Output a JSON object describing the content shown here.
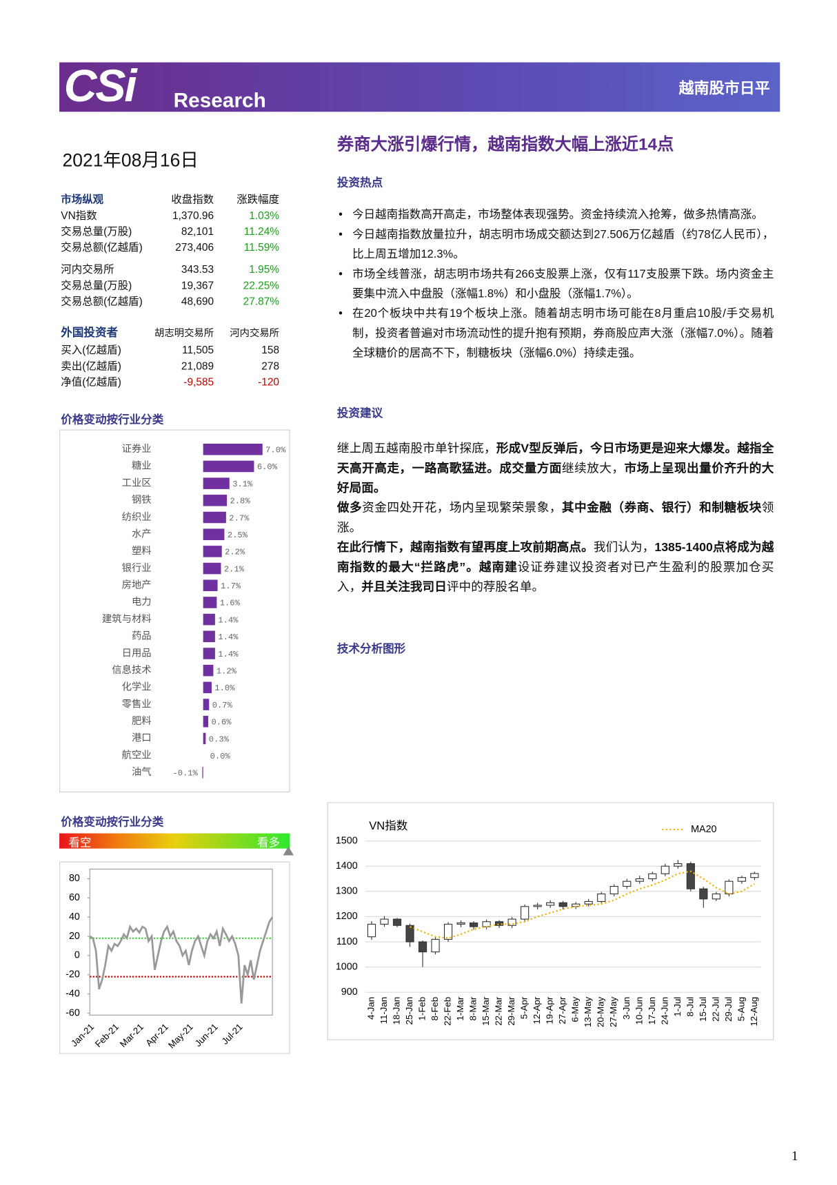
{
  "header": {
    "logo": "CSi",
    "brand": "Research",
    "report_name": "越南股市日平"
  },
  "date": "2021年08月16日",
  "headline": "券商大涨引爆行情，越南指数大幅上涨近14点",
  "market_table": {
    "header": [
      "市场纵观",
      "收盘指数",
      "涨跌幅度"
    ],
    "groups": [
      [
        [
          "VN指数",
          "1,370.96",
          "1.03%"
        ],
        [
          "交易总量(万股)",
          "82,101",
          "11.24%"
        ],
        [
          "交易总额(亿越盾)",
          "273,406",
          "11.59%"
        ]
      ],
      [
        [
          "河内交易所",
          "343.53",
          "1.95%"
        ],
        [
          "交易总量(万股)",
          "19,367",
          "22.25%"
        ],
        [
          "交易总额(亿越盾)",
          "48,690",
          "27.87%"
        ]
      ]
    ]
  },
  "foreign_table": {
    "header": [
      "外国投资者",
      "胡志明交易所",
      "河内交易所"
    ],
    "rows": [
      [
        "买入(亿越盾)",
        "11,505",
        "158"
      ],
      [
        "卖出(亿越盾)",
        "21,089",
        "278"
      ],
      [
        "净值(亿越盾)",
        "-9,585",
        "-120"
      ]
    ]
  },
  "hotspots": {
    "title": "投资热点",
    "items": [
      "今日越南指数高开高走，市场整体表现强势。资金持续流入抢筹，做多热情高涨。",
      "今日越南指数放量拉升，胡志明市场成交额达到27.506万亿越盾（约78亿人民币），比上周五增加12.3%。",
      "市场全线普涨，胡志明市场共有266支股票上涨，仅有117支股票下跌。场内资金主要集中流入中盘股（涨幅1.8%）和小盘股（涨幅1.7%）。",
      "在20个板块中共有19个板块上涨。随着胡志明市场可能在8月重启10股/手交易机制，投资者普遍对市场流动性的提升抱有预期，券商股应声大涨（涨幅7.0%）。随着全球糖价的居高不下，制糖板块（涨幅6.0%）持续走强。"
    ]
  },
  "advice": {
    "title": "投资建议",
    "paragraphs": [
      [
        {
          "text": "继上周五越南股市单针探底，",
          "bold": false
        },
        {
          "text": "形成V型反弹后，",
          "bold": true
        },
        {
          "text": "今日市场更是迎来大爆发。越指全天高开高走，一路高歌猛进。成交量方面",
          "bold": true
        },
        {
          "text": "继续放大，",
          "bold": false
        },
        {
          "text": "市场上呈现出量价齐升的大好局面。",
          "bold": true
        }
      ],
      [
        {
          "text": "做多",
          "bold": true
        },
        {
          "text": "资金四处开花，场内呈现繁荣景象，",
          "bold": false
        },
        {
          "text": "其中金融（券商、银行）和制糖板块",
          "bold": true
        },
        {
          "text": "领涨。",
          "bold": false
        }
      ],
      [
        {
          "text": "在此行情下，越南指数有望再度上攻前期高点。",
          "bold": true
        },
        {
          "text": "我们认为，",
          "bold": false
        },
        {
          "text": "1385-1400点将成为越南指数的最大“拦路虎”。越南建",
          "bold": true
        },
        {
          "text": "设证券建议投资者对已产生盈利的股票加仓买入，",
          "bold": false
        },
        {
          "text": "并且关注我司日",
          "bold": true
        },
        {
          "text": "评中的荐股名单。",
          "bold": false
        }
      ]
    ]
  },
  "technical_title": "技术分析图形",
  "sentiment": {
    "title": "价格变动按行业分类",
    "bearish": "看空",
    "bullish": "看多"
  },
  "chart_data": [
    {
      "type": "bar",
      "orientation": "horizontal",
      "title": "价格变动按行业分类",
      "color": "#7030a0",
      "categories": [
        "证券业",
        "糖业",
        "工业区",
        "钢铁",
        "纺织业",
        "水产",
        "塑料",
        "银行业",
        "房地产",
        "电力",
        "建筑与材料",
        "药品",
        "日用品",
        "信息技术",
        "化学业",
        "零售业",
        "肥料",
        "港口",
        "航空业",
        "油气"
      ],
      "values": [
        7.0,
        6.0,
        3.1,
        2.8,
        2.7,
        2.5,
        2.2,
        2.1,
        1.7,
        1.6,
        1.4,
        1.4,
        1.4,
        1.2,
        1.0,
        0.7,
        0.6,
        0.3,
        0.0,
        -0.1
      ],
      "value_labels": [
        "7.0%",
        "6.0%",
        "3.1%",
        "2.8%",
        "2.7%",
        "2.5%",
        "2.2%",
        "2.1%",
        "1.7%",
        "1.6%",
        "1.4%",
        "1.4%",
        "1.4%",
        "1.2%",
        "1.0%",
        "0.7%",
        "0.6%",
        "0.3%",
        "0.0%",
        "-0.1%"
      ]
    },
    {
      "type": "line",
      "categories": [
        "Jan-21",
        null,
        null,
        null,
        null,
        null,
        null,
        null,
        "Feb-21",
        null,
        null,
        null,
        null,
        null,
        null,
        null,
        "Mar-21",
        null,
        null,
        null,
        null,
        null,
        null,
        null,
        "Apr-21",
        null,
        null,
        null,
        null,
        null,
        null,
        null,
        "May-21",
        null,
        null,
        null,
        null,
        null,
        null,
        null,
        "Jun-21",
        null,
        null,
        null,
        null,
        null,
        null,
        null,
        "Jul-21",
        null,
        null,
        null,
        null,
        null,
        null,
        null,
        null,
        null,
        null,
        null
      ],
      "series": [
        {
          "color": "#999999",
          "values": [
            20,
            18,
            5,
            -35,
            -25,
            -10,
            10,
            5,
            12,
            10,
            15,
            22,
            18,
            30,
            25,
            28,
            24,
            30,
            28,
            15,
            20,
            -15,
            0,
            15,
            25,
            30,
            20,
            25,
            15,
            10,
            0,
            5,
            -10,
            5,
            15,
            20,
            10,
            0,
            15,
            22,
            18,
            25,
            10,
            28,
            22,
            15,
            20,
            12,
            0,
            -50,
            -10,
            -20,
            -5,
            -25,
            -10,
            5,
            15,
            25,
            35,
            40
          ]
        }
      ],
      "ylim": [
        -62,
        90
      ],
      "yticks": [
        80,
        60,
        40,
        20,
        0,
        -20,
        -40,
        -60
      ],
      "reference_lines": [
        {
          "value": 18,
          "color": "#33cc33"
        },
        {
          "value": -22,
          "color": "#c00000"
        }
      ]
    },
    {
      "type": "candlestick",
      "title": "VN指数",
      "categories": [
        "4-Jan",
        "11-Jan",
        "18-Jan",
        "25-Jan",
        "1-Feb",
        "8-Feb",
        "22-Feb",
        "1-Mar",
        "8-Mar",
        "15-Mar",
        "22-Mar",
        "29-Mar",
        "5-Apr",
        "12-Apr",
        "19-Apr",
        "27-Apr",
        "6-May",
        "13-May",
        "20-May",
        "27-May",
        "3-Jun",
        "10-Jun",
        "17-Jun",
        "24-Jun",
        "1-Jul",
        "8-Jul",
        "15-Jul",
        "22-Jul",
        "29-Jul",
        "5-Aug",
        "12-Aug"
      ],
      "open": [
        1120,
        1170,
        1190,
        1165,
        1100,
        1060,
        1110,
        1170,
        1175,
        1160,
        1180,
        1165,
        1190,
        1240,
        1245,
        1255,
        1240,
        1250,
        1260,
        1290,
        1320,
        1340,
        1350,
        1370,
        1400,
        1410,
        1310,
        1270,
        1290,
        1340,
        1355
      ],
      "high": [
        1182,
        1202,
        1195,
        1172,
        1105,
        1118,
        1178,
        1185,
        1182,
        1188,
        1186,
        1198,
        1248,
        1255,
        1265,
        1262,
        1258,
        1270,
        1298,
        1328,
        1350,
        1362,
        1378,
        1410,
        1425,
        1418,
        1318,
        1298,
        1348,
        1362,
        1378
      ],
      "low": [
        1108,
        1160,
        1158,
        1080,
        1000,
        1050,
        1100,
        1158,
        1148,
        1150,
        1155,
        1155,
        1180,
        1228,
        1235,
        1228,
        1230,
        1240,
        1250,
        1280,
        1310,
        1330,
        1340,
        1360,
        1390,
        1300,
        1235,
        1262,
        1280,
        1330,
        1345
      ],
      "close": [
        1170,
        1190,
        1165,
        1100,
        1060,
        1110,
        1170,
        1175,
        1160,
        1180,
        1165,
        1190,
        1240,
        1245,
        1255,
        1240,
        1250,
        1260,
        1290,
        1320,
        1340,
        1350,
        1370,
        1400,
        1410,
        1310,
        1270,
        1290,
        1340,
        1355,
        1371
      ],
      "series": [
        {
          "name": "MA20",
          "color": "#f0b400",
          "values": [
            null,
            null,
            null,
            1160,
            1140,
            1120,
            1115,
            1130,
            1150,
            1160,
            1170,
            1170,
            1180,
            1200,
            1215,
            1230,
            1240,
            1245,
            1250,
            1265,
            1290,
            1310,
            1325,
            1345,
            1370,
            1380,
            1350,
            1315,
            1290,
            1300,
            1330
          ]
        }
      ],
      "ylim": [
        900,
        1500
      ],
      "yticks": [
        900,
        1000,
        1100,
        1200,
        1300,
        1400,
        1500
      ],
      "grid": true,
      "legend": "top-right"
    }
  ],
  "page_number": "1"
}
